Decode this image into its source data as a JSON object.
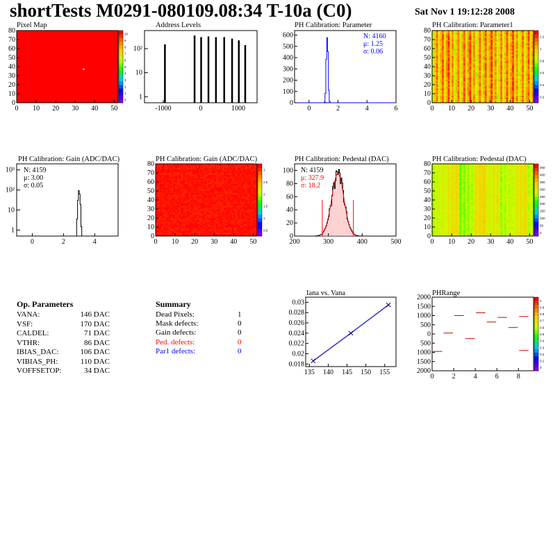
{
  "header": {
    "title": "shortTests M0291-080109.08:34 T-10a (C0)",
    "date": "Sat Nov  1 19:12:28 2008"
  },
  "panel_titles": {
    "pixel_map": "Pixel Map",
    "address_levels": "Address Levels",
    "ph_param": "PH Calibration: Parameter",
    "ph_param1": "PH Calibration: Parameter1",
    "gain_hist": "PH Calibration: Gain (ADC/DAC)",
    "gain_map": "PH Calibration: Gain (ADC/DAC)",
    "ped_hist": "PH Calibration: Pedestal (DAC)",
    "ped_map": "PH Calibration: Pedestal (DAC)",
    "iana": "Iana vs. Vana",
    "phrange": "PHRange"
  },
  "stats": {
    "ph_param": {
      "n": "N: 4160",
      "mu": "μ: 1.25",
      "sigma": "σ: 0.06"
    },
    "gain": {
      "n": "N: 4159",
      "mu": "μ: 3.00",
      "sigma": "σ: 0.05"
    },
    "ped": {
      "n": "N: 4159",
      "mu": "μ: 327.9",
      "sigma": "σ: 18.2"
    }
  },
  "op_params": {
    "title": "Op. Parameters",
    "rows": [
      {
        "name": "VANA:",
        "value": "146 DAC"
      },
      {
        "name": "VSF:",
        "value": "170 DAC"
      },
      {
        "name": "CALDEL:",
        "value": "71 DAC"
      },
      {
        "name": "VTHR:",
        "value": "86 DAC"
      },
      {
        "name": "IBIAS_DAC:",
        "value": "106 DAC"
      },
      {
        "name": "VIBIAS_PH:",
        "value": "110 DAC"
      },
      {
        "name": "VOFFSETOP:",
        "value": "34 DAC"
      }
    ]
  },
  "summary": {
    "title": "Summary",
    "rows": [
      {
        "name": "Dead Pixels:",
        "value": "1",
        "color": "#000000"
      },
      {
        "name": "Mask defects:",
        "value": "0",
        "color": "#000000"
      },
      {
        "name": "Gain defects:",
        "value": "0",
        "color": "#000000"
      },
      {
        "name": "Ped. defects:",
        "value": "0",
        "color": "#ff0000"
      },
      {
        "name": "Par1 defects:",
        "value": "0",
        "color": "#0000ff"
      }
    ]
  },
  "chart_data": [
    {
      "id": "pixel_map",
      "type": "heatmap",
      "xlim": [
        0,
        52
      ],
      "ylim": [
        0,
        80
      ],
      "xticks": [
        "0",
        "10",
        "20",
        "30",
        "40",
        "50"
      ],
      "yticks": [
        "0",
        "10",
        "20",
        "30",
        "40",
        "50",
        "60",
        "70",
        "80"
      ],
      "zticks": [
        "0",
        "1",
        "2",
        "3",
        "4",
        "5",
        "6",
        "7",
        "8",
        "9",
        "10"
      ]
    },
    {
      "id": "address_levels",
      "type": "bar",
      "xlim": [
        -1500,
        1500
      ],
      "log_y": true,
      "xticks": [
        "-1000",
        "0",
        "1000"
      ],
      "yticks": [
        "1",
        "10",
        "10²"
      ],
      "peaks": [
        {
          "x": -960,
          "v": 150
        },
        {
          "x": -170,
          "v": 350
        },
        {
          "x": 5,
          "v": 300
        },
        {
          "x": 200,
          "v": 320
        },
        {
          "x": 400,
          "v": 300
        },
        {
          "x": 620,
          "v": 300
        },
        {
          "x": 830,
          "v": 260
        },
        {
          "x": 1010,
          "v": 220
        },
        {
          "x": 1180,
          "v": 140
        }
      ]
    },
    {
      "id": "ph_param",
      "type": "bar",
      "xlim": [
        -1,
        6
      ],
      "ylim": [
        0,
        640
      ],
      "xticks": [
        "0",
        "2",
        "4",
        "6"
      ],
      "yticks": [
        "0",
        "100",
        "200",
        "300",
        "400",
        "500",
        "600"
      ],
      "mean": 1.25,
      "sigma": 0.06,
      "peak": 600
    },
    {
      "id": "ph_param1",
      "type": "heatmap",
      "xlim": [
        0,
        52
      ],
      "ylim": [
        0,
        80
      ],
      "xticks": [
        "0",
        "10",
        "20",
        "30",
        "40",
        "50"
      ],
      "yticks": [
        "0",
        "10",
        "20",
        "30",
        "40",
        "50",
        "60",
        "70",
        "80"
      ],
      "zticks": [
        "0.2",
        "0.4",
        "0.6",
        "0.8",
        "1",
        "1.2"
      ]
    },
    {
      "id": "gain_hist",
      "type": "bar",
      "xlim": [
        -1,
        5.5
      ],
      "log_y": true,
      "xticks": [
        "0",
        "2",
        "4"
      ],
      "yticks": [
        "1",
        "10",
        "10²",
        "10³"
      ],
      "mean": 3.0,
      "sigma": 0.05,
      "peak": 90
    },
    {
      "id": "gain_map",
      "type": "heatmap",
      "xlim": [
        0,
        52
      ],
      "ylim": [
        0,
        80
      ],
      "xticks": [
        "0",
        "10",
        "20",
        "30",
        "40",
        "50"
      ],
      "yticks": [
        "0",
        "10",
        "20",
        "30",
        "40",
        "50",
        "60",
        "70",
        "80"
      ],
      "zticks": [
        "0.5",
        "1",
        "1.5",
        "2",
        "2.5",
        "3"
      ]
    },
    {
      "id": "ped_hist",
      "type": "bar",
      "xlim": [
        200,
        500
      ],
      "ylim": [
        0,
        110
      ],
      "xticks": [
        "200",
        "300",
        "400",
        "500"
      ],
      "yticks": [
        "0",
        "20",
        "40",
        "60",
        "80",
        "100"
      ],
      "mean": 327.9,
      "sigma": 18.2,
      "peak": 95,
      "cuts": [
        282,
        374
      ]
    },
    {
      "id": "ped_map",
      "type": "heatmap",
      "xlim": [
        0,
        52
      ],
      "ylim": [
        0,
        80
      ],
      "xticks": [
        "0",
        "10",
        "20",
        "30",
        "40",
        "50"
      ],
      "yticks": [
        "0",
        "10",
        "20",
        "30",
        "40",
        "50",
        "60",
        "70",
        "80"
      ],
      "zticks": [
        "0",
        "50",
        "100",
        "150",
        "200",
        "250",
        "300",
        "350",
        "400",
        "450"
      ]
    },
    {
      "id": "iana",
      "type": "line",
      "xlim": [
        134,
        158
      ],
      "ylim": [
        0.0175,
        0.031
      ],
      "xticks": [
        "135",
        "140",
        "145",
        "150",
        "155"
      ],
      "yticks": [
        "0.018",
        "0.02",
        "0.022",
        "0.024",
        "0.026",
        "0.028",
        "0.03"
      ],
      "x": [
        136,
        146,
        156
      ],
      "y": [
        0.0186,
        0.024,
        0.0295
      ]
    },
    {
      "id": "phrange",
      "type": "scatter",
      "xlim": [
        0,
        9.4
      ],
      "ylim": [
        -2000,
        2000
      ],
      "xticks": [
        "0",
        "2",
        "4",
        "6",
        "8"
      ],
      "yticks": [
        "2000",
        "1500",
        "1000",
        "500",
        "0",
        "500",
        "1000",
        "1500",
        "2000"
      ],
      "zticks": [
        "0",
        "0.1",
        "0.2",
        "0.3",
        "0.4",
        "0.5",
        "0.6",
        "0.7",
        "0.8",
        "0.9",
        "1"
      ],
      "segments": [
        {
          "x0": 0,
          "x1": 1,
          "y": -950
        },
        {
          "x0": 1,
          "x1": 2,
          "y": 50
        },
        {
          "x0": 2,
          "x1": 3,
          "y": 1000
        },
        {
          "x0": 3,
          "x1": 4,
          "y": -250
        },
        {
          "x0": 4,
          "x1": 5,
          "y": 1150
        },
        {
          "x0": 5,
          "x1": 6,
          "y": 650
        },
        {
          "x0": 6,
          "x1": 7,
          "y": 900
        },
        {
          "x0": 7,
          "x1": 8,
          "y": 350
        },
        {
          "x0": 8,
          "x1": 9,
          "y": -900
        },
        {
          "x0": 8,
          "x1": 9,
          "y": 950
        }
      ]
    }
  ],
  "colors": {
    "red": "#ff0000",
    "blue": "#0000ff",
    "hist_line": "#000000",
    "fit_blue": "#3333cc"
  }
}
